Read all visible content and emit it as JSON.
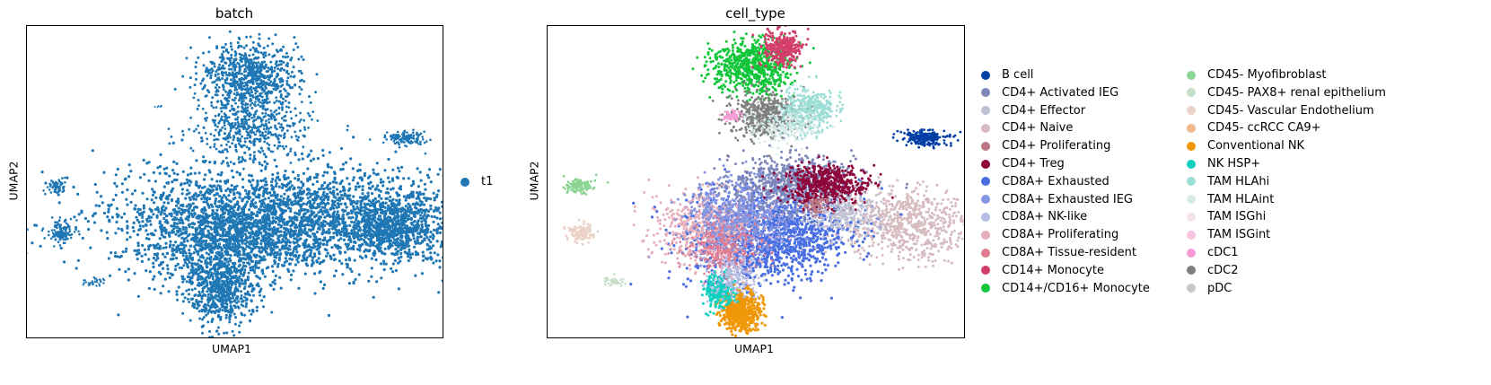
{
  "chart_data": [
    {
      "type": "scatter",
      "title": "batch",
      "xlabel": "UMAP1",
      "ylabel": "UMAP2",
      "grid": false,
      "xticks": false,
      "yticks": false,
      "legend_placement": "right",
      "series": [
        {
          "name": "t1",
          "color": "#1f77b4"
        }
      ]
    },
    {
      "type": "scatter",
      "title": "cell_type",
      "xlabel": "UMAP1",
      "ylabel": "UMAP2",
      "grid": false,
      "xticks": false,
      "yticks": false,
      "legend_placement": "right",
      "series": [
        {
          "name": "B cell",
          "color": "#023fa5"
        },
        {
          "name": "CD4+ Activated IEG",
          "color": "#7d87b9"
        },
        {
          "name": "CD4+ Effector",
          "color": "#bec1d4"
        },
        {
          "name": "CD4+ Naive",
          "color": "#d6bcc0"
        },
        {
          "name": "CD4+ Proliferating",
          "color": "#bb7784"
        },
        {
          "name": "CD4+ Treg",
          "color": "#8e063b"
        },
        {
          "name": "CD8A+ Exhausted",
          "color": "#4a6fe3"
        },
        {
          "name": "CD8A+ Exhausted IEG",
          "color": "#8595e1"
        },
        {
          "name": "CD8A+ NK-like",
          "color": "#b5bbe3"
        },
        {
          "name": "CD8A+ Proliferating",
          "color": "#e6afb9"
        },
        {
          "name": "CD8A+ Tissue-resident",
          "color": "#e07b91"
        },
        {
          "name": "CD14+ Monocyte",
          "color": "#d33f6a"
        },
        {
          "name": "CD14+/CD16+ Monocyte",
          "color": "#11c638"
        },
        {
          "name": "CD45- Myofibroblast",
          "color": "#8dd593"
        },
        {
          "name": "CD45- PAX8+ renal epithelium",
          "color": "#c6dec7"
        },
        {
          "name": "CD45- Vascular Endothelium",
          "color": "#ead3c6"
        },
        {
          "name": "CD45- ccRCC CA9+",
          "color": "#f0b98d"
        },
        {
          "name": "Conventional NK",
          "color": "#ef9708"
        },
        {
          "name": "NK HSP+",
          "color": "#0fcfc0"
        },
        {
          "name": "TAM HLAhi",
          "color": "#9cded6"
        },
        {
          "name": "TAM HLAint",
          "color": "#d5eae7"
        },
        {
          "name": "TAM ISGhi",
          "color": "#f3e1eb"
        },
        {
          "name": "TAM ISGint",
          "color": "#f6c4e1"
        },
        {
          "name": "cDC1",
          "color": "#f79cd4"
        },
        {
          "name": "cDC2",
          "color": "#7f7f7f"
        },
        {
          "name": "pDC",
          "color": "#c7c7c7"
        }
      ]
    }
  ]
}
